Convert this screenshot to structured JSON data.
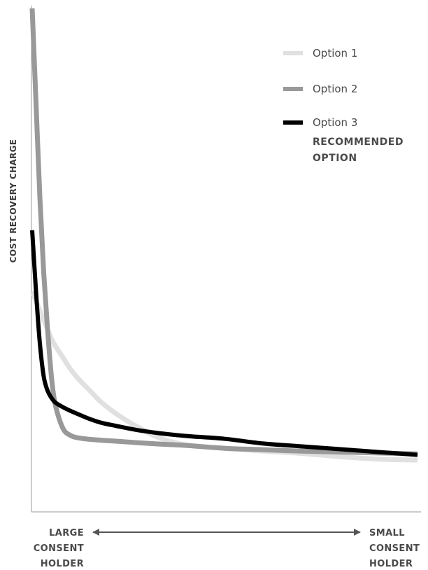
{
  "chart_data": {
    "type": "line",
    "title": "",
    "ylabel": "COST RECOVERY CHARGE",
    "x_left_label": [
      "LARGE",
      "CONSENT",
      "HOLDER"
    ],
    "x_right_label": [
      "SMALL",
      "CONSENT",
      "HOLDER"
    ],
    "xlim": [
      0,
      1
    ],
    "ylim": [
      0,
      1
    ],
    "grid": false,
    "legend_position": "top-right",
    "legend_note": [
      "RECOMMENDED",
      "OPTION"
    ],
    "x": [
      0.0,
      0.01,
      0.02,
      0.03,
      0.04,
      0.05,
      0.06,
      0.08,
      0.1,
      0.12,
      0.15,
      0.18,
      0.22,
      0.27,
      0.33,
      0.4,
      0.5,
      0.6,
      0.7,
      0.8,
      0.9,
      1.0
    ],
    "series": [
      {
        "name": "Option 1",
        "color": "#e0e0e0",
        "values": [
          0.4,
          0.38,
          0.36,
          0.34,
          0.32,
          0.3,
          0.285,
          0.26,
          0.235,
          0.215,
          0.19,
          0.165,
          0.14,
          0.115,
          0.09,
          0.075,
          0.068,
          0.062,
          0.057,
          0.05,
          0.045,
          0.043
        ]
      },
      {
        "name": "Option 2",
        "color": "#999999",
        "values": [
          1.0,
          0.8,
          0.6,
          0.44,
          0.32,
          0.22,
          0.16,
          0.11,
          0.095,
          0.09,
          0.087,
          0.085,
          0.083,
          0.08,
          0.077,
          0.074,
          0.068,
          0.065,
          0.062,
          0.06,
          0.058,
          0.056
        ]
      },
      {
        "name": "Option 3",
        "color": "#000000",
        "values": [
          0.53,
          0.4,
          0.29,
          0.22,
          0.19,
          0.175,
          0.165,
          0.155,
          0.147,
          0.14,
          0.13,
          0.122,
          0.115,
          0.107,
          0.1,
          0.094,
          0.088,
          0.078,
          0.072,
          0.066,
          0.06,
          0.054
        ]
      }
    ]
  }
}
